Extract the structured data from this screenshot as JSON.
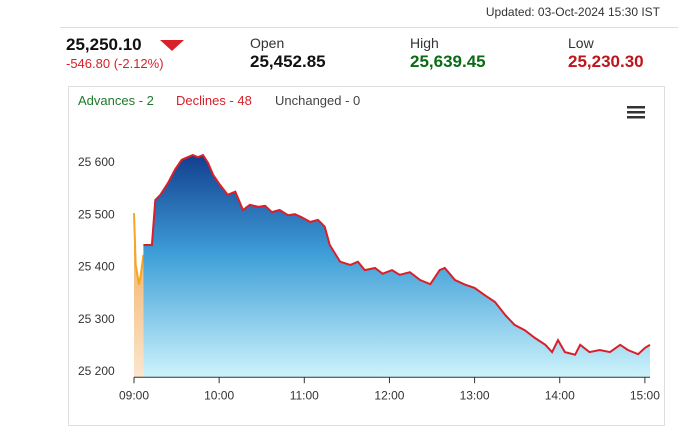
{
  "header": {
    "updated": "Updated: 03-Oct-2024 15:30 IST",
    "last": "25,250.10",
    "change": "-546.80 (-2.12%)",
    "stats": [
      {
        "label": "Open",
        "value": "25,452.85"
      },
      {
        "label": "High",
        "value": "25,639.45"
      },
      {
        "label": "Low",
        "value": "25,230.30"
      }
    ]
  },
  "market_breadth": [
    "Advances - 2",
    "Declines - 48",
    "Unchanged - 0"
  ],
  "chart_data": {
    "type": "area",
    "series": [
      {
        "color": "#f5a623",
        "x": [
          9.0,
          9.02,
          9.06,
          9.08,
          9.11
        ],
        "values": [
          25504,
          25405,
          25367,
          25386,
          25424
        ]
      },
      {
        "color": "#d9202a",
        "x": [
          9.11,
          9.21,
          9.25,
          9.31,
          9.4,
          9.48,
          9.56,
          9.63,
          9.69,
          9.75,
          9.81,
          9.87,
          9.93,
          10.01,
          10.1,
          10.19,
          10.28,
          10.36,
          10.46,
          10.54,
          10.62,
          10.71,
          10.81,
          10.89,
          10.97,
          11.07,
          11.16,
          11.24,
          11.3,
          11.42,
          11.54,
          11.63,
          11.71,
          11.83,
          11.92,
          12.03,
          12.12,
          12.24,
          12.36,
          12.48,
          12.59,
          12.65,
          12.77,
          12.89,
          13.0,
          13.12,
          13.24,
          13.36,
          13.47,
          13.59,
          13.71,
          13.83,
          13.91,
          13.98,
          14.06,
          14.18,
          14.24,
          14.35,
          14.47,
          14.59,
          14.71,
          14.8,
          14.92,
          15.0,
          15.06
        ],
        "values": [
          25443,
          25443,
          25529,
          25539,
          25562,
          25587,
          25606,
          25611,
          25615,
          25611,
          25615,
          25600,
          25577,
          25558,
          25539,
          25545,
          25510,
          25520,
          25516,
          25518,
          25506,
          25510,
          25500,
          25502,
          25496,
          25487,
          25491,
          25478,
          25443,
          25411,
          25405,
          25411,
          25395,
          25399,
          25388,
          25395,
          25386,
          25391,
          25376,
          25368,
          25395,
          25399,
          25376,
          25367,
          25361,
          25347,
          25334,
          25309,
          25290,
          25280,
          25265,
          25252,
          25238,
          25261,
          25238,
          25233,
          25252,
          25238,
          25242,
          25238,
          25252,
          25242,
          25234,
          25246,
          25252
        ]
      }
    ],
    "xlim": [
      9.0,
      15.06
    ],
    "ylim": [
      25190,
      25670
    ],
    "xticks": [
      {
        "value": 9,
        "label": "09:00"
      },
      {
        "value": 10,
        "label": "10:00"
      },
      {
        "value": 11,
        "label": "11:00"
      },
      {
        "value": 12,
        "label": "12:00"
      },
      {
        "value": 13,
        "label": "13:00"
      },
      {
        "value": 14,
        "label": "14:00"
      },
      {
        "value": 15,
        "label": "15:00"
      }
    ],
    "yticks": [
      {
        "value": 25200,
        "label": "25 200"
      },
      {
        "value": 25300,
        "label": "25 300"
      },
      {
        "value": 25400,
        "label": "25 400"
      },
      {
        "value": 25500,
        "label": "25 500"
      },
      {
        "value": 25600,
        "label": "25 600"
      }
    ],
    "grid": false
  }
}
